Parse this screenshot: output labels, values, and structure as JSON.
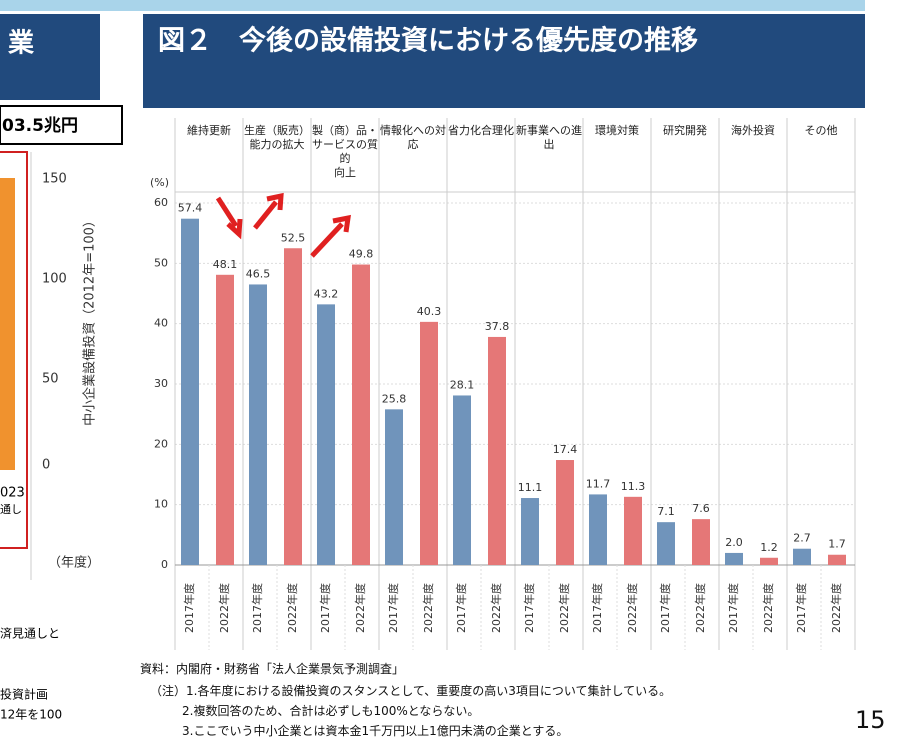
{
  "chart_data": {
    "type": "bar",
    "title": "図２　今後の設備投資における優先度の推移",
    "y_unit": "(%)",
    "categories": [
      "維持更新",
      "生産（販売）\n能力の拡大",
      "製（商）品・\nサービスの質的\n向上",
      "情報化への対\n応",
      "省力化合理化",
      "新事業への進\n出",
      "環境対策",
      "研究開発",
      "海外投資",
      "その他"
    ],
    "series": [
      {
        "name": "2017年度",
        "color": "#7094bb",
        "values": [
          57.4,
          46.5,
          43.2,
          25.8,
          28.1,
          11.1,
          11.7,
          7.1,
          2.0,
          2.7
        ],
        "value_labels": [
          "57.4",
          "46.5",
          "43.2",
          "25.8",
          "28.1",
          "11.1",
          "11.7",
          "7.1",
          "2.0",
          "2.7"
        ]
      },
      {
        "name": "2022年度",
        "color": "#e57777",
        "values": [
          48.1,
          52.5,
          49.8,
          40.3,
          37.8,
          17.4,
          11.3,
          7.6,
          1.2,
          1.7
        ],
        "value_labels": [
          "48.1",
          "52.5",
          "49.8",
          "40.3",
          "37.8",
          "17.4",
          "11.3",
          "7.6",
          "1.2",
          "1.7"
        ]
      }
    ],
    "ylim": [
      0,
      60
    ],
    "yticks": [
      0,
      10,
      20,
      30,
      40,
      50,
      60
    ],
    "grid": true
  },
  "left_panel": {
    "title": "業",
    "callout": "03.5兆円",
    "yticks": [
      "150",
      "100",
      "50",
      "0"
    ],
    "y_label": "中小企業設備投資（2012年=100）",
    "x_fragment": "023",
    "x_fragment2": "通し",
    "x_unit": "（年度）",
    "notes": [
      "済見通しと",
      "投資計画",
      "12年を100"
    ]
  },
  "notes": {
    "source": "資料：内閣府・財務省「法人企業景気予測調査」",
    "note1": "（注）1.各年度における設備投資のスタンスとして、重要度の高い3項目について集計している。",
    "note2": "2.複数回答のため、合計は必ずしも100%とならない。",
    "note3": "3.ここでいう中小企業とは資本金1千万円以上1億円未満の企業とする。"
  },
  "page_number": "15"
}
